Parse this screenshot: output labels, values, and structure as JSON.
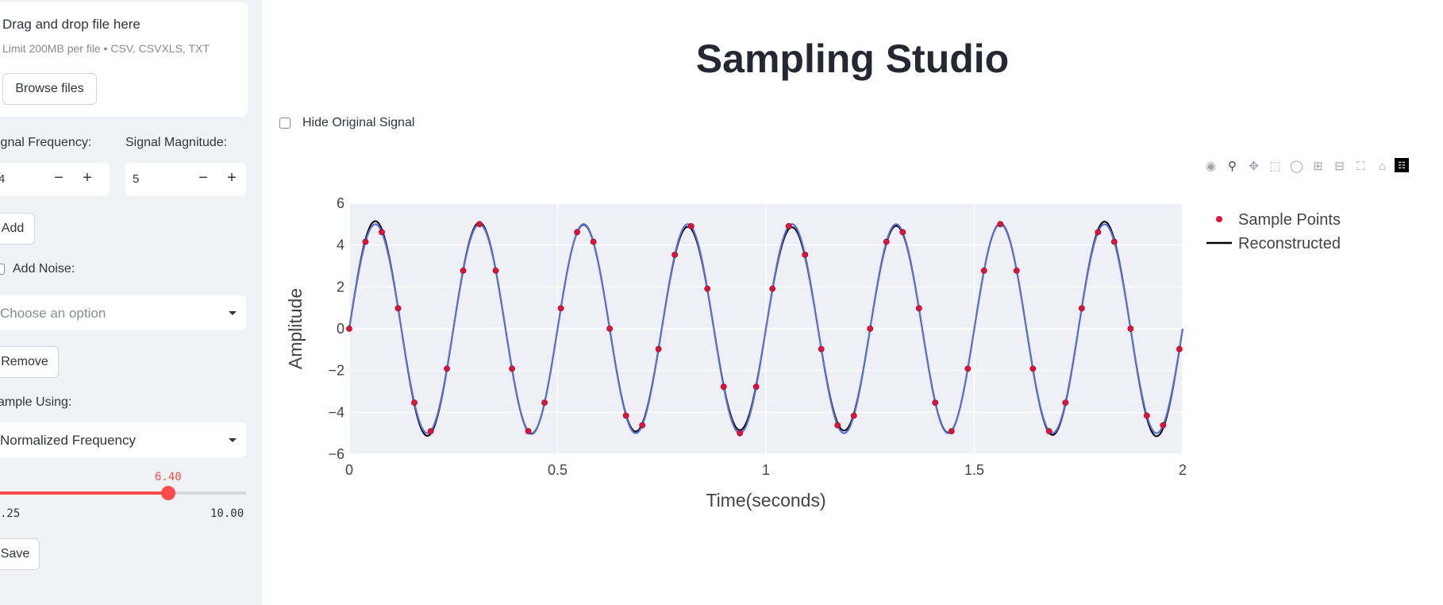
{
  "sidebar": {
    "uploader": {
      "title": "Drag and drop file here",
      "subtitle": "Limit 200MB per file • CSV, CSVXLS, TXT",
      "browse_label": "Browse files"
    },
    "signal_frequency_label": "ignal Frequency:",
    "signal_frequency_value": "4",
    "signal_magnitude_label": "Signal Magnitude:",
    "signal_magnitude_value": "5",
    "add_label": "Add",
    "add_noise_label": "Add Noise:",
    "noise_select_placeholder": "Choose an option",
    "remove_label": "Remove",
    "sample_using_label": "ample Using:",
    "sample_select_value": "Normalized Frequency",
    "slider": {
      "value": 6.4,
      "value_label": "6.40",
      "min_label": ".25",
      "max_label": "10.00",
      "min": 0.25,
      "max": 10.0
    },
    "save_label": "Save"
  },
  "main": {
    "title": "Sampling Studio",
    "hide_original_label": "Hide Original Signal",
    "modebar_icons": [
      "camera-icon",
      "zoom-icon",
      "pan-icon",
      "box-select-icon",
      "lasso-icon",
      "zoom-in-icon",
      "zoom-out-icon",
      "autoscale-icon",
      "reset-axes-icon",
      "plotly-logo-icon"
    ]
  },
  "chart_data": {
    "type": "line",
    "xlabel": "Time(seconds)",
    "ylabel": "Amplitude",
    "xlim": [
      0,
      2
    ],
    "ylim": [
      -6,
      6
    ],
    "xticks": [
      0,
      0.5,
      1,
      1.5,
      2
    ],
    "xtick_labels": [
      "0",
      "0.5",
      "1",
      "1.5",
      "2"
    ],
    "yticks": [
      -6,
      -4,
      -2,
      0,
      2,
      4,
      6
    ],
    "ytick_labels": [
      "−6",
      "−4",
      "−2",
      "0",
      "2",
      "4",
      "6"
    ],
    "grid": true,
    "legend_position": "top-right",
    "signal": {
      "frequency_hz": 4,
      "amplitude": 5
    },
    "sampling_rate_hz": 25.6,
    "series": [
      {
        "name": "Sample Points",
        "kind": "markers",
        "color": "#dc143c"
      },
      {
        "name": "Reconstructed",
        "kind": "line",
        "color": "#000000"
      },
      {
        "kind": "line",
        "color": "#5b6fd6"
      }
    ]
  },
  "colors": {
    "accent": "#ff4b4b",
    "plot_bg": "#eef0f5",
    "sidebar_bg": "#f0f2f6"
  }
}
